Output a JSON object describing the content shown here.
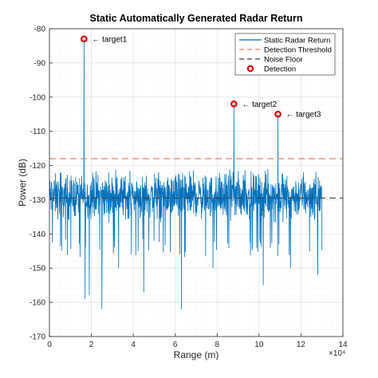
{
  "chart_data": {
    "type": "line",
    "title": "Static Automatically Generated Radar Return",
    "xlabel": "Range (m)",
    "ylabel": "Power (dB)",
    "x_exponent_label": "×10⁴",
    "xlim": [
      0,
      140000
    ],
    "ylim": [
      -170,
      -80
    ],
    "x_ticks": [
      0,
      20000,
      40000,
      60000,
      80000,
      100000,
      120000,
      140000
    ],
    "x_tick_labels": [
      "0",
      "2",
      "4",
      "6",
      "8",
      "10",
      "12",
      "14"
    ],
    "y_ticks": [
      -170,
      -160,
      -150,
      -140,
      -130,
      -120,
      -110,
      -100,
      -90,
      -80
    ],
    "y_tick_labels": [
      "-170",
      "-160",
      "-150",
      "-140",
      "-130",
      "-120",
      "-110",
      "-100",
      "-90",
      "-80"
    ],
    "grid": true,
    "minor_grid": true,
    "legend_position": "top-right",
    "legend": [
      {
        "label": "Static Radar Return",
        "style": "solid",
        "color": "#0072BD"
      },
      {
        "label": "Detection Threshold",
        "style": "dashed",
        "color": "#E8836A"
      },
      {
        "label": "Noise Floor",
        "style": "dashed",
        "color": "#404040"
      },
      {
        "label": "Detection",
        "style": "circle",
        "color": "#D40000"
      }
    ],
    "series": [
      {
        "name": "Static Radar Return",
        "color": "#0072BD",
        "x_range": [
          0,
          130000
        ],
        "noise_mean": -129,
        "noise_spread": [
          -141,
          -123
        ],
        "deep_dips": [
          {
            "x": 17000,
            "y": -159
          },
          {
            "x": 19000,
            "y": -158
          },
          {
            "x": 25000,
            "y": -162
          },
          {
            "x": 33000,
            "y": -150
          },
          {
            "x": 45000,
            "y": -157
          },
          {
            "x": 63000,
            "y": -162
          },
          {
            "x": 78000,
            "y": -150
          },
          {
            "x": 102000,
            "y": -155
          },
          {
            "x": 115000,
            "y": -150
          },
          {
            "x": 128000,
            "y": -152
          }
        ]
      }
    ],
    "detection_threshold": -118,
    "noise_floor": -129.5,
    "detections": [
      {
        "x": 16500,
        "y": -83,
        "label": "← target1"
      },
      {
        "x": 88000,
        "y": -102,
        "label": "← target2"
      },
      {
        "x": 109000,
        "y": -105,
        "label": "← target3"
      }
    ],
    "colors": {
      "signal": "#0072BD",
      "threshold": "#E8836A",
      "noise_floor": "#404040",
      "detection": "#D40000",
      "grid": "#DFDFDF",
      "axis": "#262626"
    }
  }
}
